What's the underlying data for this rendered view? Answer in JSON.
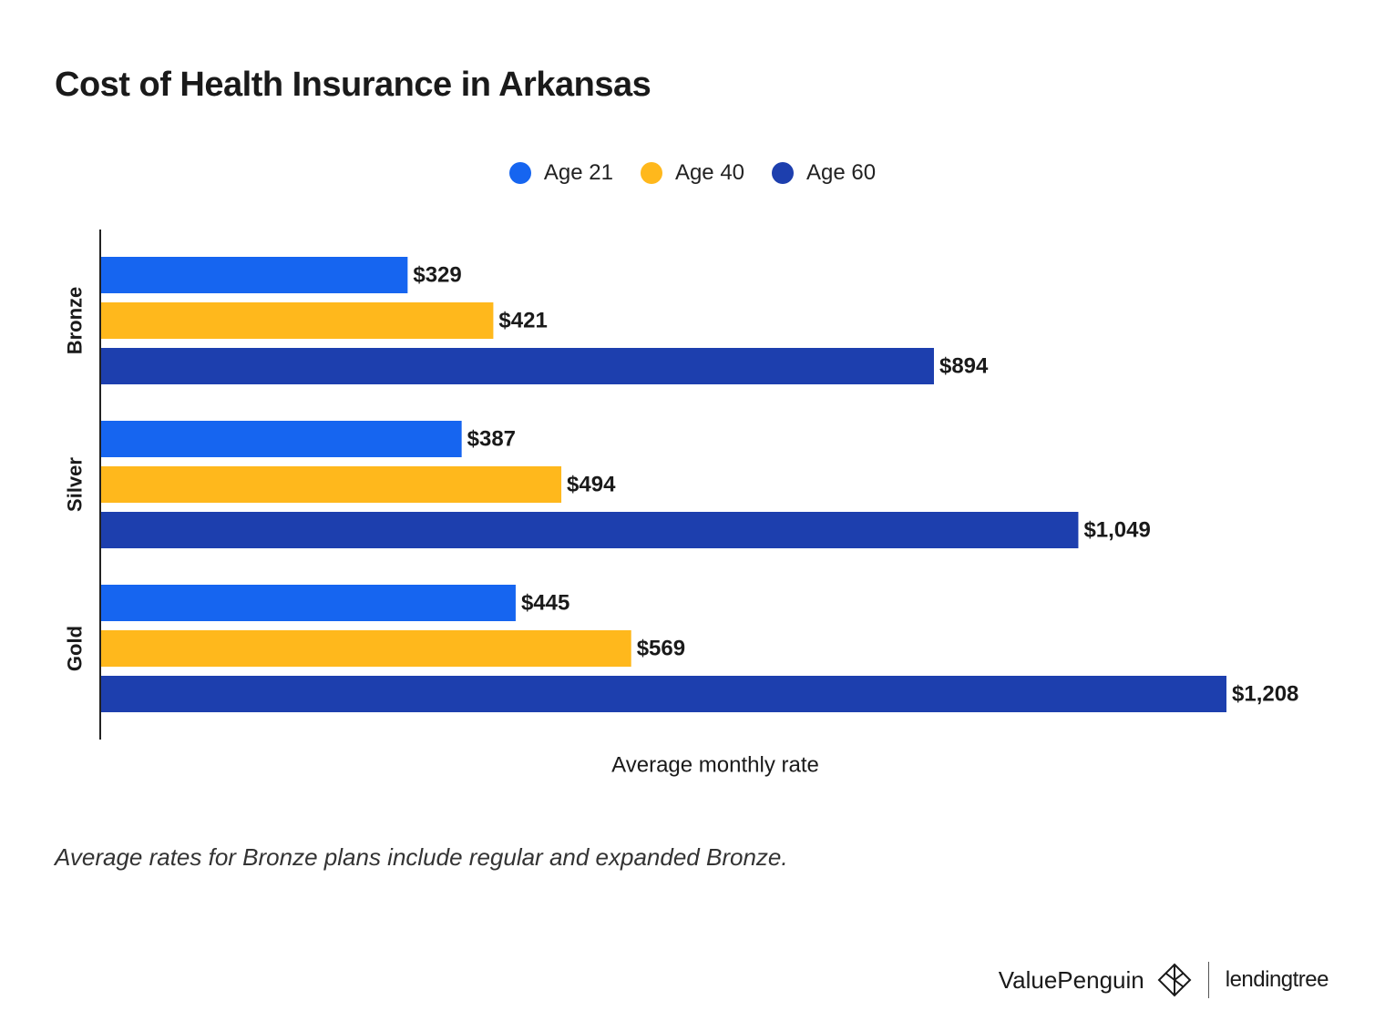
{
  "chart_data": {
    "type": "bar",
    "orientation": "horizontal",
    "title": "Cost of Health Insurance in Arkansas",
    "categories": [
      "Bronze",
      "Silver",
      "Gold"
    ],
    "series": [
      {
        "name": "Age 21",
        "color": "#1665f0",
        "values": [
          329,
          387,
          445
        ],
        "labels": [
          "$329",
          "$387",
          "$445"
        ]
      },
      {
        "name": "Age 40",
        "color": "#ffb81c",
        "values": [
          421,
          494,
          569
        ],
        "labels": [
          "$421",
          "$494",
          "$569"
        ]
      },
      {
        "name": "Age 60",
        "color": "#1d3fae",
        "values": [
          894,
          1049,
          1208
        ],
        "labels": [
          "$894",
          "$1,049",
          "$1,208"
        ]
      }
    ],
    "xlabel": "Average monthly rate",
    "ylabel": "",
    "xlim": [
      0,
      1208
    ],
    "legend_position": "top-center",
    "grid": false
  },
  "footnote": "Average rates for Bronze plans include regular and expanded Bronze.",
  "branding": {
    "valuepenguin": "ValuePenguin",
    "lendingtree": "lendingtree"
  },
  "icons": {
    "valuepenguin_logo": "penguin-diamond-icon"
  }
}
